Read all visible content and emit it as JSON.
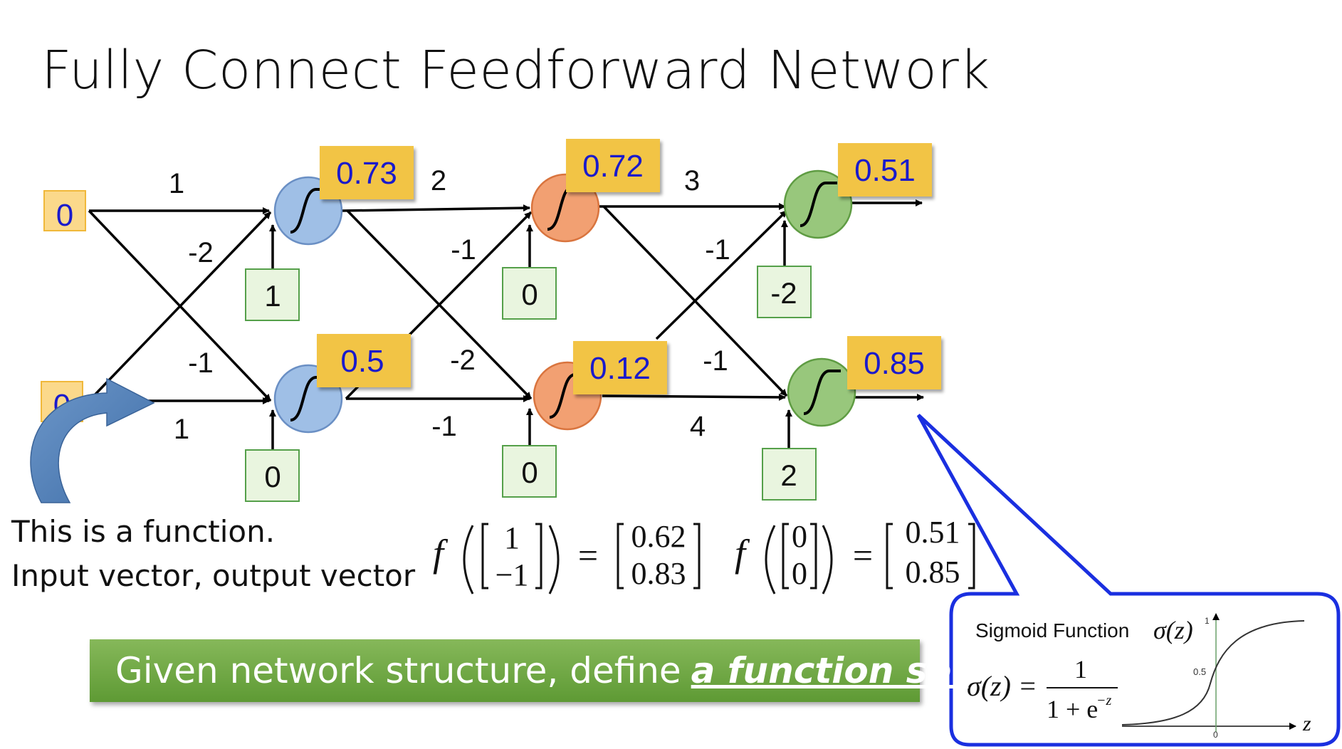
{
  "title": "Fully Connect Feedforward Network",
  "colors": {
    "input_fill": "#fbd98b",
    "input_border": "#f0b83a",
    "input_text": "#1a1acc",
    "bias_fill": "#e9f5df",
    "bias_border": "#55a04a",
    "output_fill": "#f2c445",
    "output_text": "#1a1acc",
    "neuron_layer1": "#9fbfe6",
    "neuron_layer2": "#f2a072",
    "neuron_layer3": "#98c77c",
    "banner": "#6fa744",
    "callout_border": "#1a2fe0"
  },
  "network": {
    "inputs": [
      "0",
      "0"
    ],
    "layer1": {
      "weights_top": [
        "1",
        "-2"
      ],
      "weights_bottom": [
        "-1",
        "1"
      ],
      "biases": [
        "1",
        "0"
      ],
      "outputs": [
        "0.73",
        "0.5"
      ]
    },
    "layer2": {
      "weights_top": [
        "2",
        "-1"
      ],
      "weights_bottom": [
        "-2",
        "-1"
      ],
      "biases": [
        "0",
        "0"
      ],
      "outputs": [
        "0.72",
        "0.12"
      ]
    },
    "layer3": {
      "weights_top": [
        "3",
        "-1"
      ],
      "weights_bottom": [
        "-1",
        "4"
      ],
      "biases": [
        "-2",
        "2"
      ],
      "outputs": [
        "0.51",
        "0.85"
      ]
    }
  },
  "caption": {
    "line1": "This is a function.",
    "line2": "Input vector, output vector"
  },
  "equations": {
    "eq1": {
      "f": "f",
      "input": [
        "1",
        "−1"
      ],
      "equals": "=",
      "output": [
        "0.62",
        "0.83"
      ]
    },
    "eq2": {
      "f": "f",
      "input": [
        "0",
        "0"
      ],
      "equals": "=",
      "output": [
        "0.51",
        "0.85"
      ]
    }
  },
  "banner": {
    "text": "Given network structure, define",
    "emphasis": "a function set"
  },
  "sigmoid": {
    "label": "Sigmoid Function",
    "sigma_z": "σ(z)",
    "formula_lhs": "σ(z) =",
    "numerator": "1",
    "denominator": "1 + e",
    "exponent": "−z",
    "y_tick_top": "1",
    "y_tick_mid": "0.5",
    "x_tick": "0",
    "axis_label": "z"
  }
}
